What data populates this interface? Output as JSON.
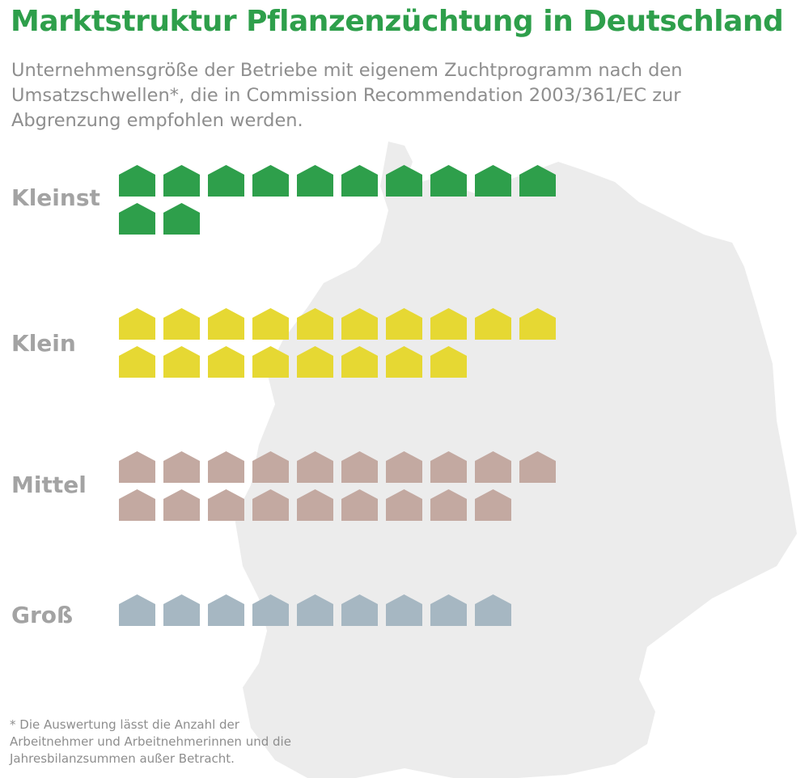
{
  "header": {
    "title": "Marktstruktur Pflanzenzüchtung in Deutschland",
    "subtitle": "Unternehmensgröße der Betriebe mit eigenem Zuchtprogramm nach den Umsatzschwellen*, die in Commission Recommendation 2003/361/EC zur Abgrenzung empfohlen werden."
  },
  "footnote": "* Die Auswertung lässt die Anzahl der Arbeitnehmer und Arbeitnehmerinnen und die Jahresbilanzsummen außer Betracht.",
  "background": {
    "icon": "germany-map-silhouette",
    "color": "#ececec"
  },
  "chart_data": {
    "type": "pictograph",
    "icon": "house-icon",
    "categories": [
      "Kleinst",
      "Klein",
      "Mittel",
      "Groß"
    ],
    "values": [
      12,
      18,
      19,
      9
    ],
    "colors": [
      "#2e9f4b",
      "#e6d833",
      "#c3a9a1",
      "#a6b7c2"
    ],
    "icons_per_row": 10
  }
}
